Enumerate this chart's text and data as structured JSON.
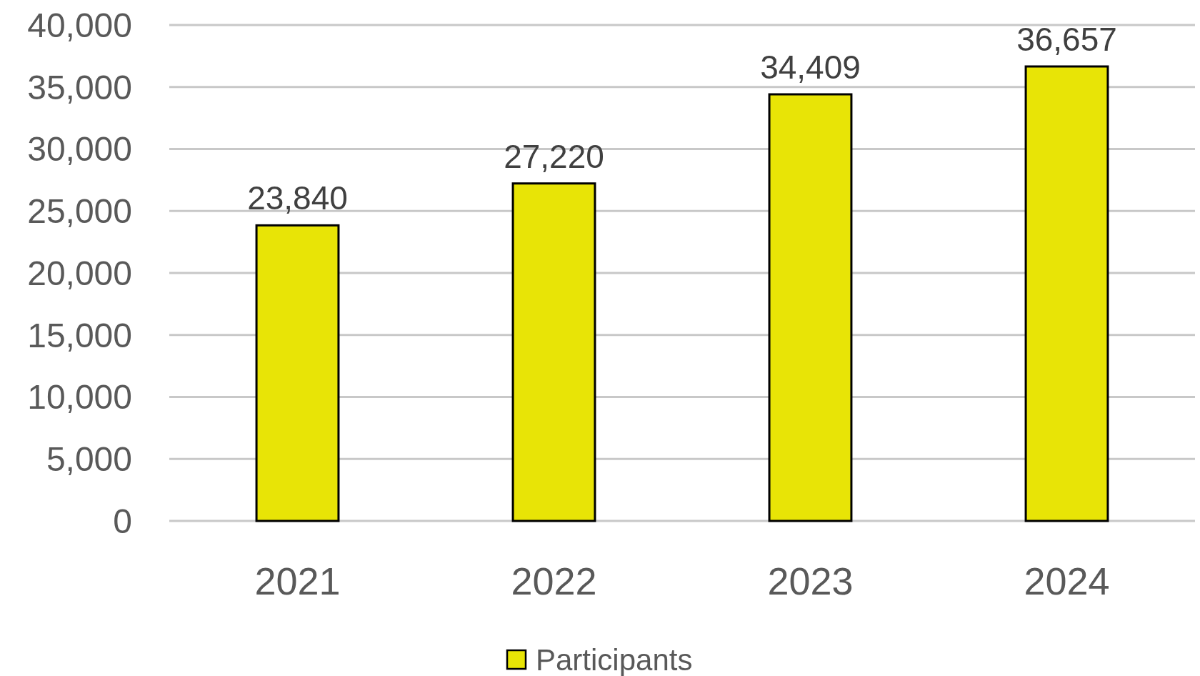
{
  "chart_data": {
    "type": "bar",
    "categories": [
      "2021",
      "2022",
      "2023",
      "2024"
    ],
    "series": [
      {
        "name": "Participants",
        "color": "#e8e406",
        "values": [
          23840,
          27220,
          34409,
          36657
        ],
        "value_labels": [
          "23,840",
          "27,220",
          "34,409",
          "36,657"
        ]
      }
    ],
    "ylim": [
      0,
      40000
    ],
    "yticks": [
      {
        "value": 0,
        "label": "0"
      },
      {
        "value": 5000,
        "label": "5,000"
      },
      {
        "value": 10000,
        "label": "10,000"
      },
      {
        "value": 15000,
        "label": "15,000"
      },
      {
        "value": 20000,
        "label": "20,000"
      },
      {
        "value": 25000,
        "label": "25,000"
      },
      {
        "value": 30000,
        "label": "30,000"
      },
      {
        "value": 35000,
        "label": "35,000"
      },
      {
        "value": 40000,
        "label": "40,000"
      }
    ],
    "grid": "y",
    "legend": "bottom"
  }
}
